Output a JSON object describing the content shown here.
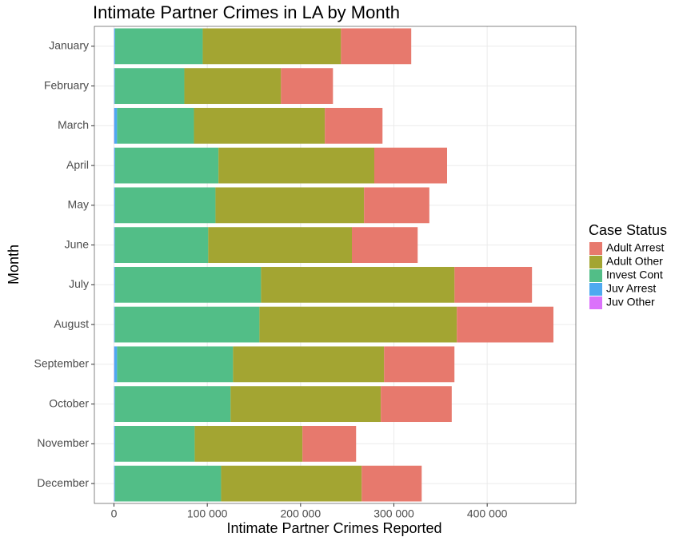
{
  "chart_data": {
    "type": "stacked-bar-horizontal",
    "title": "Intimate Partner Crimes in LA by Month",
    "x_label": "Intimate Partner Crimes Reported",
    "y_label": "Month",
    "legend_title": "Case Status",
    "legend_position": "right",
    "grid": true,
    "categories": [
      "January",
      "February",
      "March",
      "April",
      "May",
      "June",
      "July",
      "August",
      "September",
      "October",
      "November",
      "December"
    ],
    "xlim": [
      -21000,
      495000
    ],
    "xticks": [
      0,
      {
        "value": 100000,
        "label": "100 000"
      },
      {
        "value": 200000,
        "label": "200 000"
      },
      {
        "value": 300000,
        "label": "300 000"
      },
      {
        "value": 400000,
        "label": "400 000"
      }
    ],
    "series": [
      {
        "name": "Adult Arrest",
        "color": "#E7796D",
        "values": [
          75300,
          55700,
          61800,
          78000,
          70000,
          70500,
          83000,
          103500,
          75400,
          76000,
          57500,
          64300
        ]
      },
      {
        "name": "Adult Other",
        "color": "#A3A532",
        "values": [
          148200,
          103600,
          140300,
          167000,
          159200,
          154000,
          207400,
          211600,
          161900,
          161000,
          115500,
          150700
        ]
      },
      {
        "name": "Invest Cont",
        "color": "#52BE87",
        "values": [
          93900,
          74400,
          82400,
          110800,
          107600,
          100000,
          156400,
          154900,
          124300,
          124000,
          85300,
          113800
        ]
      },
      {
        "name": "Juv Arrest",
        "color": "#4EA9F0",
        "values": [
          1000,
          800,
          3000,
          1000,
          1000,
          800,
          1000,
          800,
          3000,
          800,
          1000,
          800
        ]
      },
      {
        "name": "Juv Other",
        "color": "#DB72FB",
        "values": [
          200,
          200,
          300,
          200,
          200,
          200,
          200,
          200,
          300,
          200,
          200,
          200
        ]
      }
    ]
  }
}
